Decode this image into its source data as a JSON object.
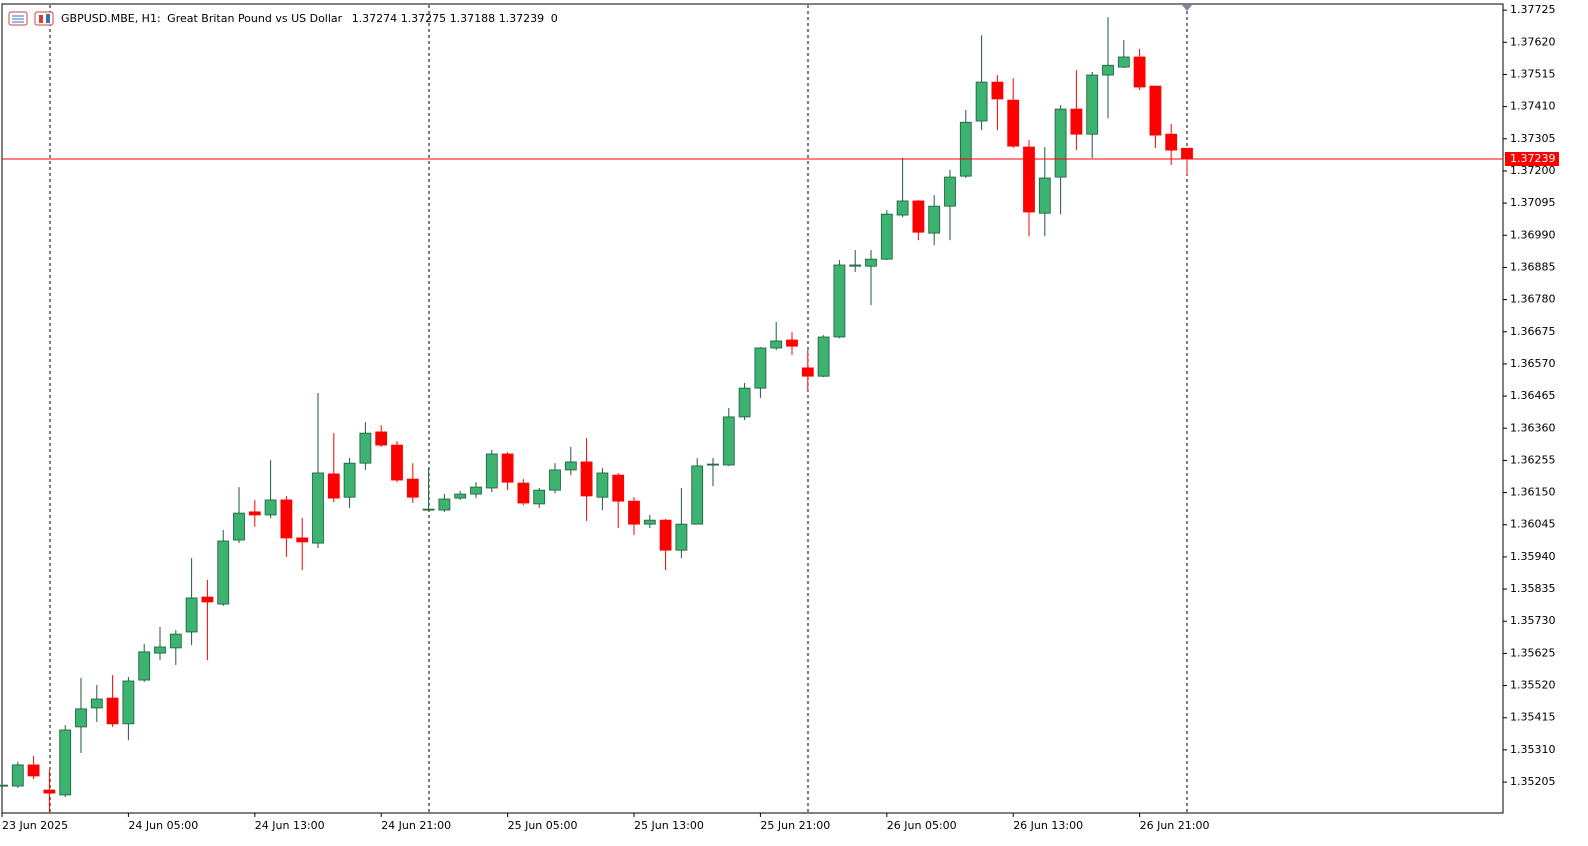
{
  "chart_data": {
    "type": "candlestick",
    "symbol": "GBPUSD.MBE, H1:",
    "description": "Great Britan Pound vs US Dollar",
    "header_value": 0,
    "up_color": "#3cb371",
    "down_color": "#ff0000",
    "price_line_color": "#ff0000",
    "x": [
      "23 Jun 2025",
      null,
      null,
      null,
      null,
      null,
      null,
      null,
      "24 Jun 05:00",
      null,
      null,
      null,
      null,
      null,
      null,
      null,
      "24 Jun 13:00",
      null,
      null,
      null,
      null,
      null,
      null,
      null,
      "24 Jun 21:00",
      null,
      null,
      null,
      null,
      null,
      null,
      null,
      "25 Jun 05:00",
      null,
      null,
      null,
      null,
      null,
      null,
      null,
      "25 Jun 13:00",
      null,
      null,
      null,
      null,
      null,
      null,
      null,
      "25 Jun 21:00",
      null,
      null,
      null,
      null,
      null,
      null,
      null,
      "26 Jun 05:00",
      null,
      null,
      null,
      null,
      null,
      null,
      null,
      "26 Jun 13:00",
      null,
      null,
      null,
      null,
      null,
      null,
      null,
      "26 Jun 21:00",
      null,
      null,
      null
    ],
    "open": [
      1.35195,
      1.35192,
      1.35261,
      1.35179,
      1.35163,
      1.35385,
      1.35447,
      1.35479,
      1.35395,
      1.35538,
      1.35626,
      1.35643,
      1.35695,
      1.35809,
      1.35786,
      1.35995,
      1.36087,
      1.36077,
      1.36126,
      1.36002,
      1.35985,
      1.36211,
      1.36135,
      1.36246,
      1.36348,
      1.36305,
      1.36194,
      1.36093,
      1.36093,
      1.36132,
      1.36145,
      1.36165,
      1.36276,
      1.36181,
      1.36113,
      1.36158,
      1.36224,
      1.3625,
      1.36135,
      1.36207,
      1.36122,
      1.36047,
      1.3606,
      1.35962,
      1.36047,
      1.3624,
      1.3624,
      1.36397,
      1.36491,
      1.36622,
      1.36648,
      1.36557,
      1.3653,
      1.36658,
      1.36889,
      1.36889,
      1.36912,
      1.37056,
      1.37102,
      1.36997,
      1.37085,
      1.37183,
      1.37363,
      1.3749,
      1.37431,
      1.37278,
      1.37062,
      1.3718,
      1.37402,
      1.3732,
      1.37513,
      1.37539,
      1.37572,
      1.37477,
      1.3732,
      1.37274
    ],
    "high": [
      1.35198,
      1.35271,
      1.3529,
      1.35244,
      1.35391,
      1.35545,
      1.35522,
      1.35554,
      1.35548,
      1.35656,
      1.35711,
      1.35701,
      1.35936,
      1.35865,
      1.36028,
      1.36168,
      1.36126,
      1.36256,
      1.36139,
      1.36067,
      1.36475,
      1.36344,
      1.36263,
      1.3638,
      1.3637,
      1.36318,
      1.36246,
      1.3623,
      1.36145,
      1.36155,
      1.36184,
      1.36289,
      1.36282,
      1.36194,
      1.36165,
      1.36246,
      1.36299,
      1.36328,
      1.3623,
      1.36214,
      1.36135,
      1.36077,
      1.36064,
      1.36165,
      1.36263,
      1.36263,
      1.36426,
      1.36508,
      1.36625,
      1.36707,
      1.36674,
      1.36615,
      1.36664,
      1.36909,
      1.36942,
      1.36942,
      1.37072,
      1.37242,
      1.37105,
      1.37121,
      1.37203,
      1.37399,
      1.37643,
      1.37513,
      1.37503,
      1.37301,
      1.37278,
      1.37415,
      1.37529,
      1.37523,
      1.37702,
      1.37627,
      1.37598,
      1.37477,
      1.37353,
      1.37275
    ],
    "low": [
      1.35192,
      1.35186,
      1.35215,
      1.35107,
      1.35156,
      1.353,
      1.35401,
      1.35385,
      1.35342,
      1.35532,
      1.35603,
      1.35587,
      1.35652,
      1.35603,
      1.3578,
      1.35985,
      1.36038,
      1.36067,
      1.3594,
      1.35897,
      1.35969,
      1.36119,
      1.361,
      1.36224,
      1.36299,
      1.36184,
      1.36116,
      1.3609,
      1.36087,
      1.36126,
      1.36132,
      1.36152,
      1.36158,
      1.36109,
      1.361,
      1.36148,
      1.36207,
      1.36057,
      1.36093,
      1.36034,
      1.36011,
      1.36034,
      1.35897,
      1.35936,
      1.36073,
      1.36171,
      1.36237,
      1.36387,
      1.36459,
      1.36615,
      1.36599,
      1.36478,
      1.36527,
      1.36654,
      1.3687,
      1.36762,
      1.36909,
      1.37049,
      1.36974,
      1.36958,
      1.36974,
      1.37177,
      1.37333,
      1.37333,
      1.37275,
      1.36987,
      1.36987,
      1.37059,
      1.37268,
      1.37242,
      1.37372,
      1.37536,
      1.37464,
      1.37275,
      1.37219,
      1.37188
    ],
    "close": [
      1.35195,
      1.35261,
      1.35225,
      1.35169,
      1.35375,
      1.35444,
      1.35476,
      1.35395,
      1.35535,
      1.3563,
      1.35646,
      1.35688,
      1.35806,
      1.35793,
      1.35992,
      1.36083,
      1.36077,
      1.36126,
      1.36002,
      1.35989,
      1.36214,
      1.36132,
      1.36246,
      1.36344,
      1.36305,
      1.36191,
      1.36135,
      1.36096,
      1.36129,
      1.36145,
      1.36168,
      1.36276,
      1.36184,
      1.36116,
      1.36158,
      1.36224,
      1.3625,
      1.36139,
      1.36214,
      1.36122,
      1.36047,
      1.3606,
      1.35962,
      1.36047,
      1.36237,
      1.36243,
      1.36397,
      1.36491,
      1.36622,
      1.36645,
      1.36628,
      1.3653,
      1.36658,
      1.36893,
      1.36893,
      1.36912,
      1.37059,
      1.37102,
      1.37,
      1.37085,
      1.3718,
      1.37359,
      1.3749,
      1.37435,
      1.37281,
      1.37066,
      1.37177,
      1.37402,
      1.3732,
      1.37513,
      1.37545,
      1.37572,
      1.37474,
      1.37317,
      1.37268,
      1.37239
    ],
    "ylim": [
      1.35104,
      1.37745
    ],
    "yticks": [
      1.37725,
      {
        "value": 1.3762,
        "label": "1.37620"
      },
      1.37515,
      {
        "value": 1.3741,
        "label": "1.37410"
      },
      1.37305,
      {
        "value": 1.372,
        "label": "1.37200"
      },
      1.37095,
      {
        "value": 1.3699,
        "label": "1.36990"
      },
      1.36885,
      {
        "value": 1.3678,
        "label": "1.36780"
      },
      1.36675,
      {
        "value": 1.3657,
        "label": "1.36570"
      },
      1.36465,
      {
        "value": 1.3636,
        "label": "1.36360"
      },
      1.36255,
      {
        "value": 1.3615,
        "label": "1.36150"
      },
      1.36045,
      {
        "value": 1.3594,
        "label": "1.35940"
      },
      1.35835,
      {
        "value": 1.3573,
        "label": "1.35730"
      },
      1.35625,
      {
        "value": 1.3552,
        "label": "1.35520"
      },
      1.35415,
      {
        "value": 1.3531,
        "label": "1.35310"
      },
      1.35205
    ]
  }
}
